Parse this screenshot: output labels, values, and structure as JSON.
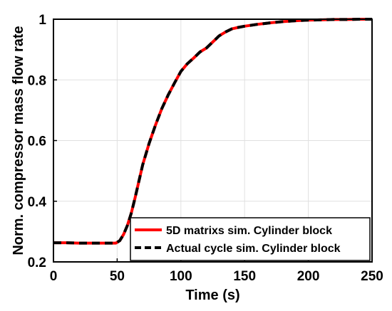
{
  "chart_data": {
    "type": "line",
    "xlabel": "Time (s)",
    "ylabel": "Norm. compressor mass flow rate",
    "xlim": [
      0,
      250
    ],
    "ylim": [
      0.2,
      1.0
    ],
    "x_ticks": [
      "0",
      "50",
      "100",
      "150",
      "200",
      "250"
    ],
    "y_ticks": [
      "0.2",
      "0.4",
      "0.6",
      "0.8",
      "1"
    ],
    "grid": true,
    "legend_position": "bottom-right",
    "x": [
      0,
      10,
      20,
      30,
      40,
      49,
      52,
      55,
      58,
      61,
      64,
      67,
      70,
      75,
      80,
      85,
      90,
      95,
      100,
      105,
      110,
      115,
      120,
      125,
      130,
      135,
      140,
      145,
      150,
      160,
      170,
      180,
      190,
      200,
      210,
      220,
      230,
      240,
      250
    ],
    "series": [
      {
        "name": "5D matrixs sim. Cylinder block",
        "color": "#ff0000",
        "style": "solid",
        "values": [
          0.263,
          0.263,
          0.262,
          0.262,
          0.262,
          0.262,
          0.27,
          0.29,
          0.32,
          0.36,
          0.41,
          0.465,
          0.52,
          0.59,
          0.65,
          0.705,
          0.75,
          0.79,
          0.828,
          0.853,
          0.872,
          0.892,
          0.905,
          0.925,
          0.945,
          0.958,
          0.968,
          0.973,
          0.977,
          0.983,
          0.988,
          0.992,
          0.995,
          0.997,
          0.998,
          0.999,
          0.999,
          1.0,
          1.0
        ]
      },
      {
        "name": "Actual cycle sim. Cylinder block",
        "color": "#000000",
        "style": "dashed",
        "values": [
          0.263,
          0.263,
          0.262,
          0.262,
          0.262,
          0.262,
          0.27,
          0.29,
          0.32,
          0.36,
          0.41,
          0.465,
          0.52,
          0.59,
          0.65,
          0.705,
          0.75,
          0.79,
          0.828,
          0.853,
          0.872,
          0.892,
          0.905,
          0.925,
          0.945,
          0.958,
          0.968,
          0.973,
          0.977,
          0.983,
          0.988,
          0.992,
          0.995,
          0.997,
          0.998,
          0.999,
          0.999,
          1.0,
          1.0
        ]
      }
    ]
  }
}
